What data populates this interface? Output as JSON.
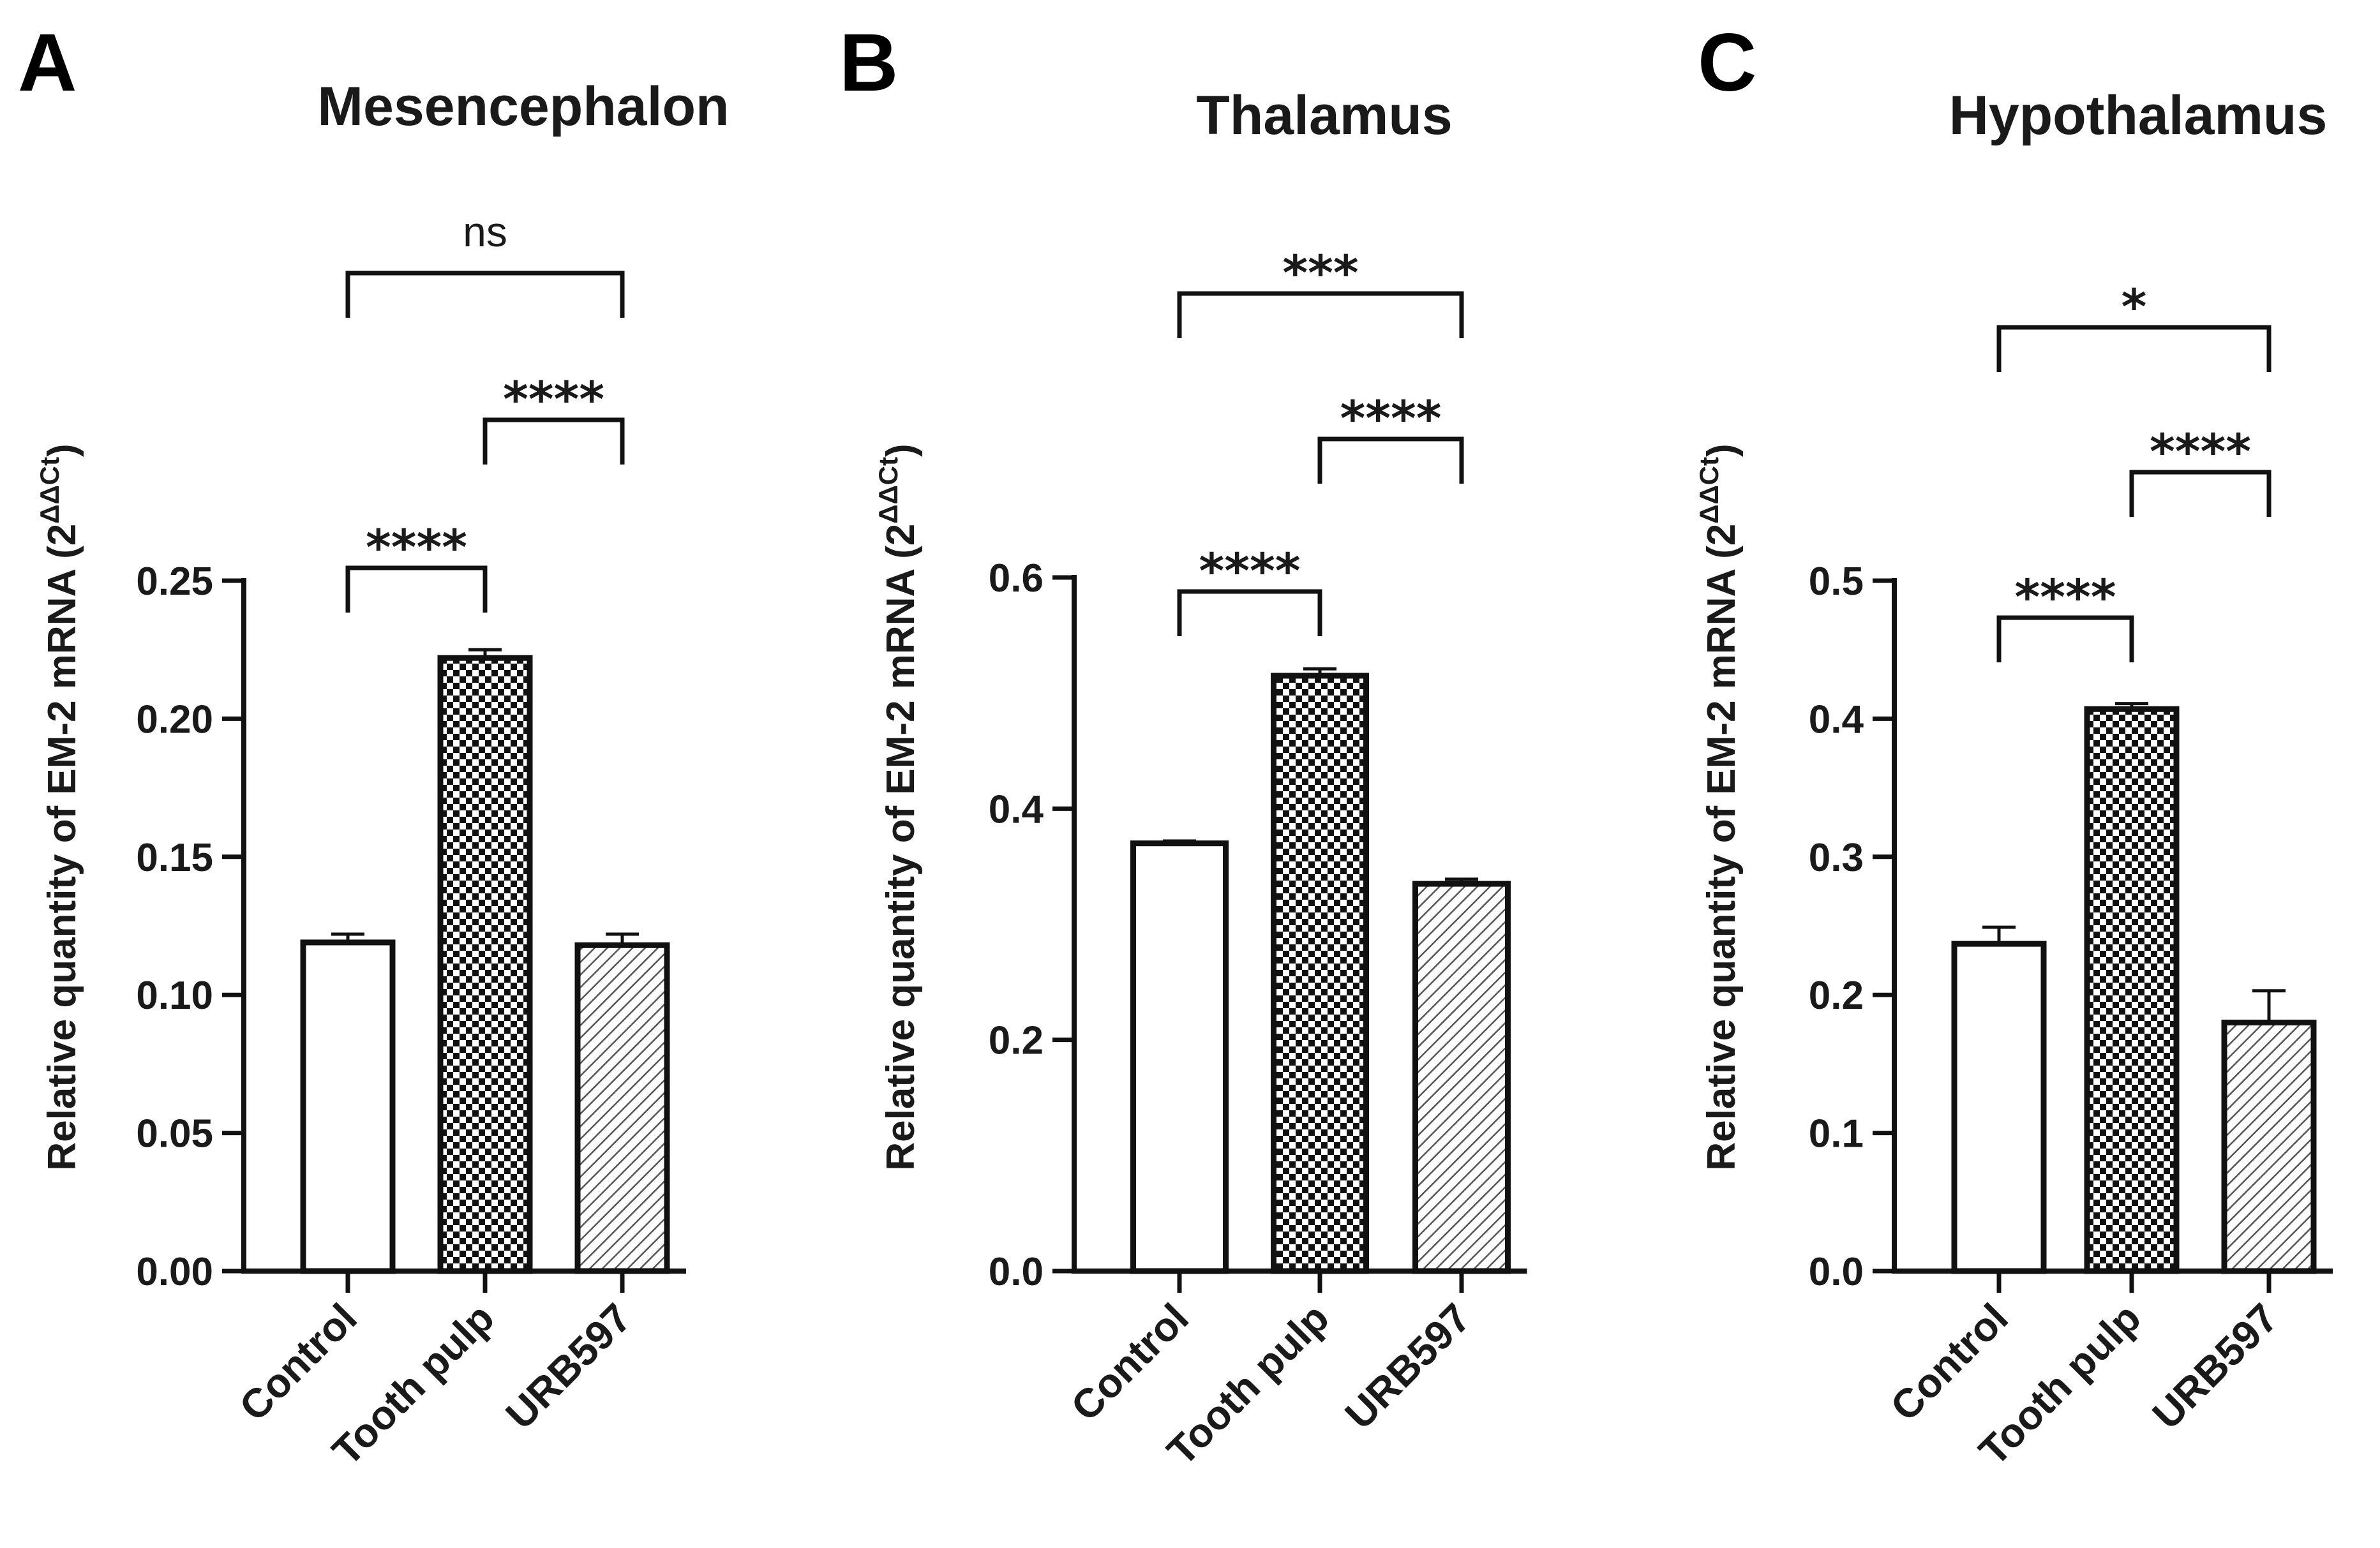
{
  "chart_data": [
    {
      "type": "bar",
      "panel": "A",
      "title": "Mesencephalon",
      "ylabel": "Relative quantity of EM-2 mRNA (2",
      "ylabel_sup": "ΔΔCt",
      "ylabel_close": ")",
      "categories": [
        "Control",
        "Tooth pulp",
        "URB597"
      ],
      "values": [
        0.119,
        0.222,
        0.118
      ],
      "errors": [
        0.003,
        0.003,
        0.004
      ],
      "patterns": [
        "none",
        "checker",
        "hatch"
      ],
      "ylim": [
        0,
        0.25
      ],
      "yticks": [
        0,
        0.05,
        0.1,
        0.15,
        0.2,
        0.25
      ],
      "ytick_labels": [
        "0.00",
        "0.05",
        "0.10",
        "0.15",
        "0.20",
        "0.25"
      ],
      "comparisons": [
        {
          "from": 0,
          "to": 1,
          "label": "****"
        },
        {
          "from": 1,
          "to": 2,
          "label": "****"
        },
        {
          "from": 0,
          "to": 2,
          "label": "ns"
        }
      ]
    },
    {
      "type": "bar",
      "panel": "B",
      "title": "Thalamus",
      "ylabel": "Relative quantity of EM-2 mRNA (2",
      "ylabel_sup": "ΔΔCt",
      "ylabel_close": ")",
      "categories": [
        "Control",
        "Tooth pulp",
        "URB597"
      ],
      "values": [
        0.37,
        0.515,
        0.335
      ],
      "errors": [
        0.002,
        0.006,
        0.004
      ],
      "patterns": [
        "none",
        "checker",
        "hatch"
      ],
      "ylim": [
        0,
        0.6
      ],
      "yticks": [
        0,
        0.2,
        0.4,
        0.6
      ],
      "ytick_labels": [
        "0.0",
        "0.2",
        "0.4",
        "0.6"
      ],
      "comparisons": [
        {
          "from": 0,
          "to": 1,
          "label": "****"
        },
        {
          "from": 1,
          "to": 2,
          "label": "****"
        },
        {
          "from": 0,
          "to": 2,
          "label": "***"
        }
      ]
    },
    {
      "type": "bar",
      "panel": "C",
      "title": "Hypothalamus",
      "ylabel": "Relative quantity of EM-2 mRNA (2",
      "ylabel_sup": "ΔΔCt",
      "ylabel_close": ")",
      "categories": [
        "Control",
        "Tooth pulp",
        "URB597"
      ],
      "values": [
        0.237,
        0.407,
        0.18
      ],
      "errors": [
        0.012,
        0.004,
        0.023
      ],
      "patterns": [
        "none",
        "checker",
        "hatch"
      ],
      "ylim": [
        0,
        0.5
      ],
      "yticks": [
        0,
        0.1,
        0.2,
        0.3,
        0.4,
        0.5
      ],
      "ytick_labels": [
        "0.0",
        "0.1",
        "0.2",
        "0.3",
        "0.4",
        "0.5"
      ],
      "comparisons": [
        {
          "from": 0,
          "to": 1,
          "label": "****"
        },
        {
          "from": 1,
          "to": 2,
          "label": "****"
        },
        {
          "from": 0,
          "to": 2,
          "label": "*"
        }
      ]
    }
  ]
}
